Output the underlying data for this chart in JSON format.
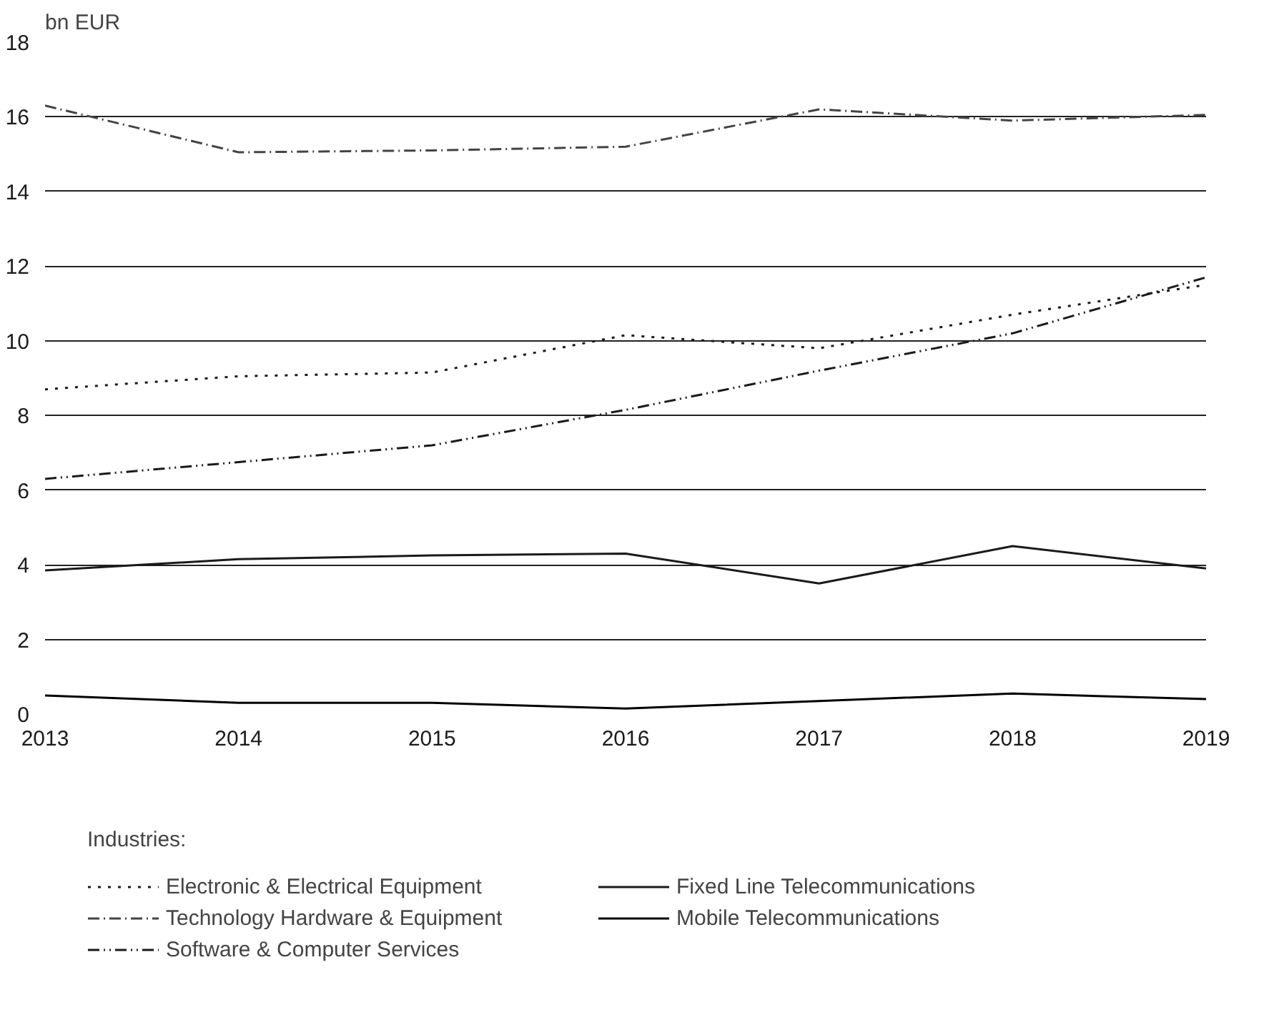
{
  "chart_data": {
    "type": "line",
    "ylabel": "bn EUR",
    "legend_title": "Industries:",
    "x": [
      2013,
      2014,
      2015,
      2016,
      2017,
      2018,
      2019
    ],
    "xlim": [
      2013,
      2019
    ],
    "xticks": [
      2013,
      2014,
      2015,
      2016,
      2017,
      2018,
      2019
    ],
    "ylim": [
      0,
      18
    ],
    "yticks": [
      0,
      2,
      4,
      6,
      8,
      10,
      12,
      14,
      16,
      18
    ],
    "grid": "y",
    "legend": "bottom",
    "series": [
      {
        "name": "Electronic & Electrical Equipment",
        "color": "#1a1a1a",
        "line_style": "dotted",
        "values": [
          8.7,
          9.05,
          9.15,
          10.15,
          9.8,
          10.7,
          11.5
        ]
      },
      {
        "name": "Technology Hardware & Equipment",
        "color": "#444444",
        "line_style": "dashdot",
        "values": [
          16.3,
          15.05,
          15.1,
          15.2,
          16.2,
          15.9,
          16.05
        ]
      },
      {
        "name": "Software & Computer Services",
        "color": "#1a1a1a",
        "line_style": "dashdotdot",
        "values": [
          6.3,
          6.75,
          7.2,
          8.15,
          9.2,
          10.2,
          11.7
        ]
      },
      {
        "name": "Fixed Line Telecommunications",
        "color": "#1a1a1a",
        "line_style": "solid",
        "values": [
          3.85,
          4.15,
          4.25,
          4.3,
          3.5,
          4.5,
          3.9
        ]
      },
      {
        "name": "Mobile Telecommunications",
        "color": "#000000",
        "line_style": "solid",
        "values": [
          0.5,
          0.3,
          0.3,
          0.15,
          0.35,
          0.55,
          0.4
        ]
      }
    ]
  }
}
